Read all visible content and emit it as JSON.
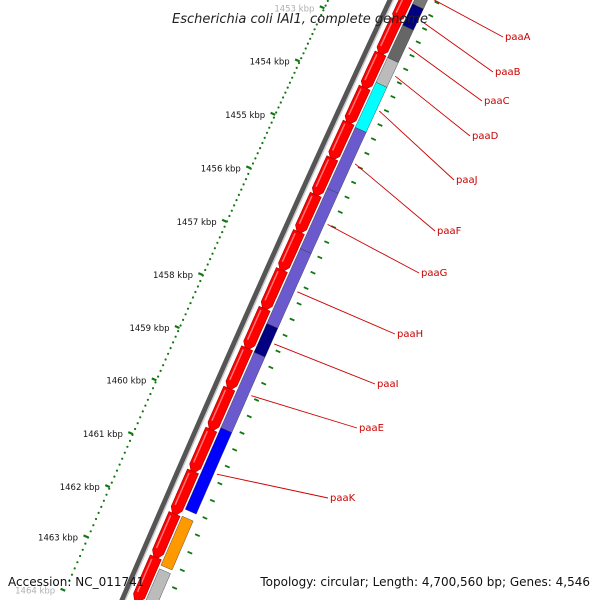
{
  "title": "Escherichia coli IAI1, complete genome",
  "footer": {
    "accession": "Accession: NC_011741",
    "summary": "Topology: circular; Length: 4,700,560 bp; Genes: 4,546"
  },
  "colors": {
    "forward_gene": "#ff0000",
    "tick": "#117711",
    "backbone": "#888888",
    "label": "#cc0000"
  },
  "scale": {
    "unit": "kbp",
    "visible_from_kbp": 1453,
    "visible_to_kbp": 1464,
    "ticks": [
      "1453 kbp",
      "1454 kbp",
      "1455 kbp",
      "1456 kbp",
      "1457 kbp",
      "1458 kbp",
      "1459 kbp",
      "1460 kbp",
      "1461 kbp",
      "1462 kbp",
      "1463 kbp",
      "1464 kbp"
    ]
  },
  "forward_genes_count": 16,
  "paa_genes": [
    {
      "label": "paaA",
      "color": "#777777"
    },
    {
      "label": "paaB",
      "color": "#000080"
    },
    {
      "label": "paaC",
      "color": "#666666"
    },
    {
      "label": "paaD",
      "color": "#bbbbbb"
    },
    {
      "label": "paaJ",
      "color": "#00ffff"
    },
    {
      "label": "paaF",
      "color": "#6a5acd"
    },
    {
      "label": "paaG",
      "color": "#6a5acd"
    },
    {
      "label": "paaH",
      "color": "#6a5acd"
    },
    {
      "label": "paaI",
      "color": "#000080"
    },
    {
      "label": "paaE",
      "color": "#6a5acd"
    },
    {
      "label": "paaK",
      "color": "#0000ff"
    },
    {
      "label": "",
      "color": "#ff9900"
    },
    {
      "label": "",
      "color": "#bbbbbb"
    }
  ]
}
